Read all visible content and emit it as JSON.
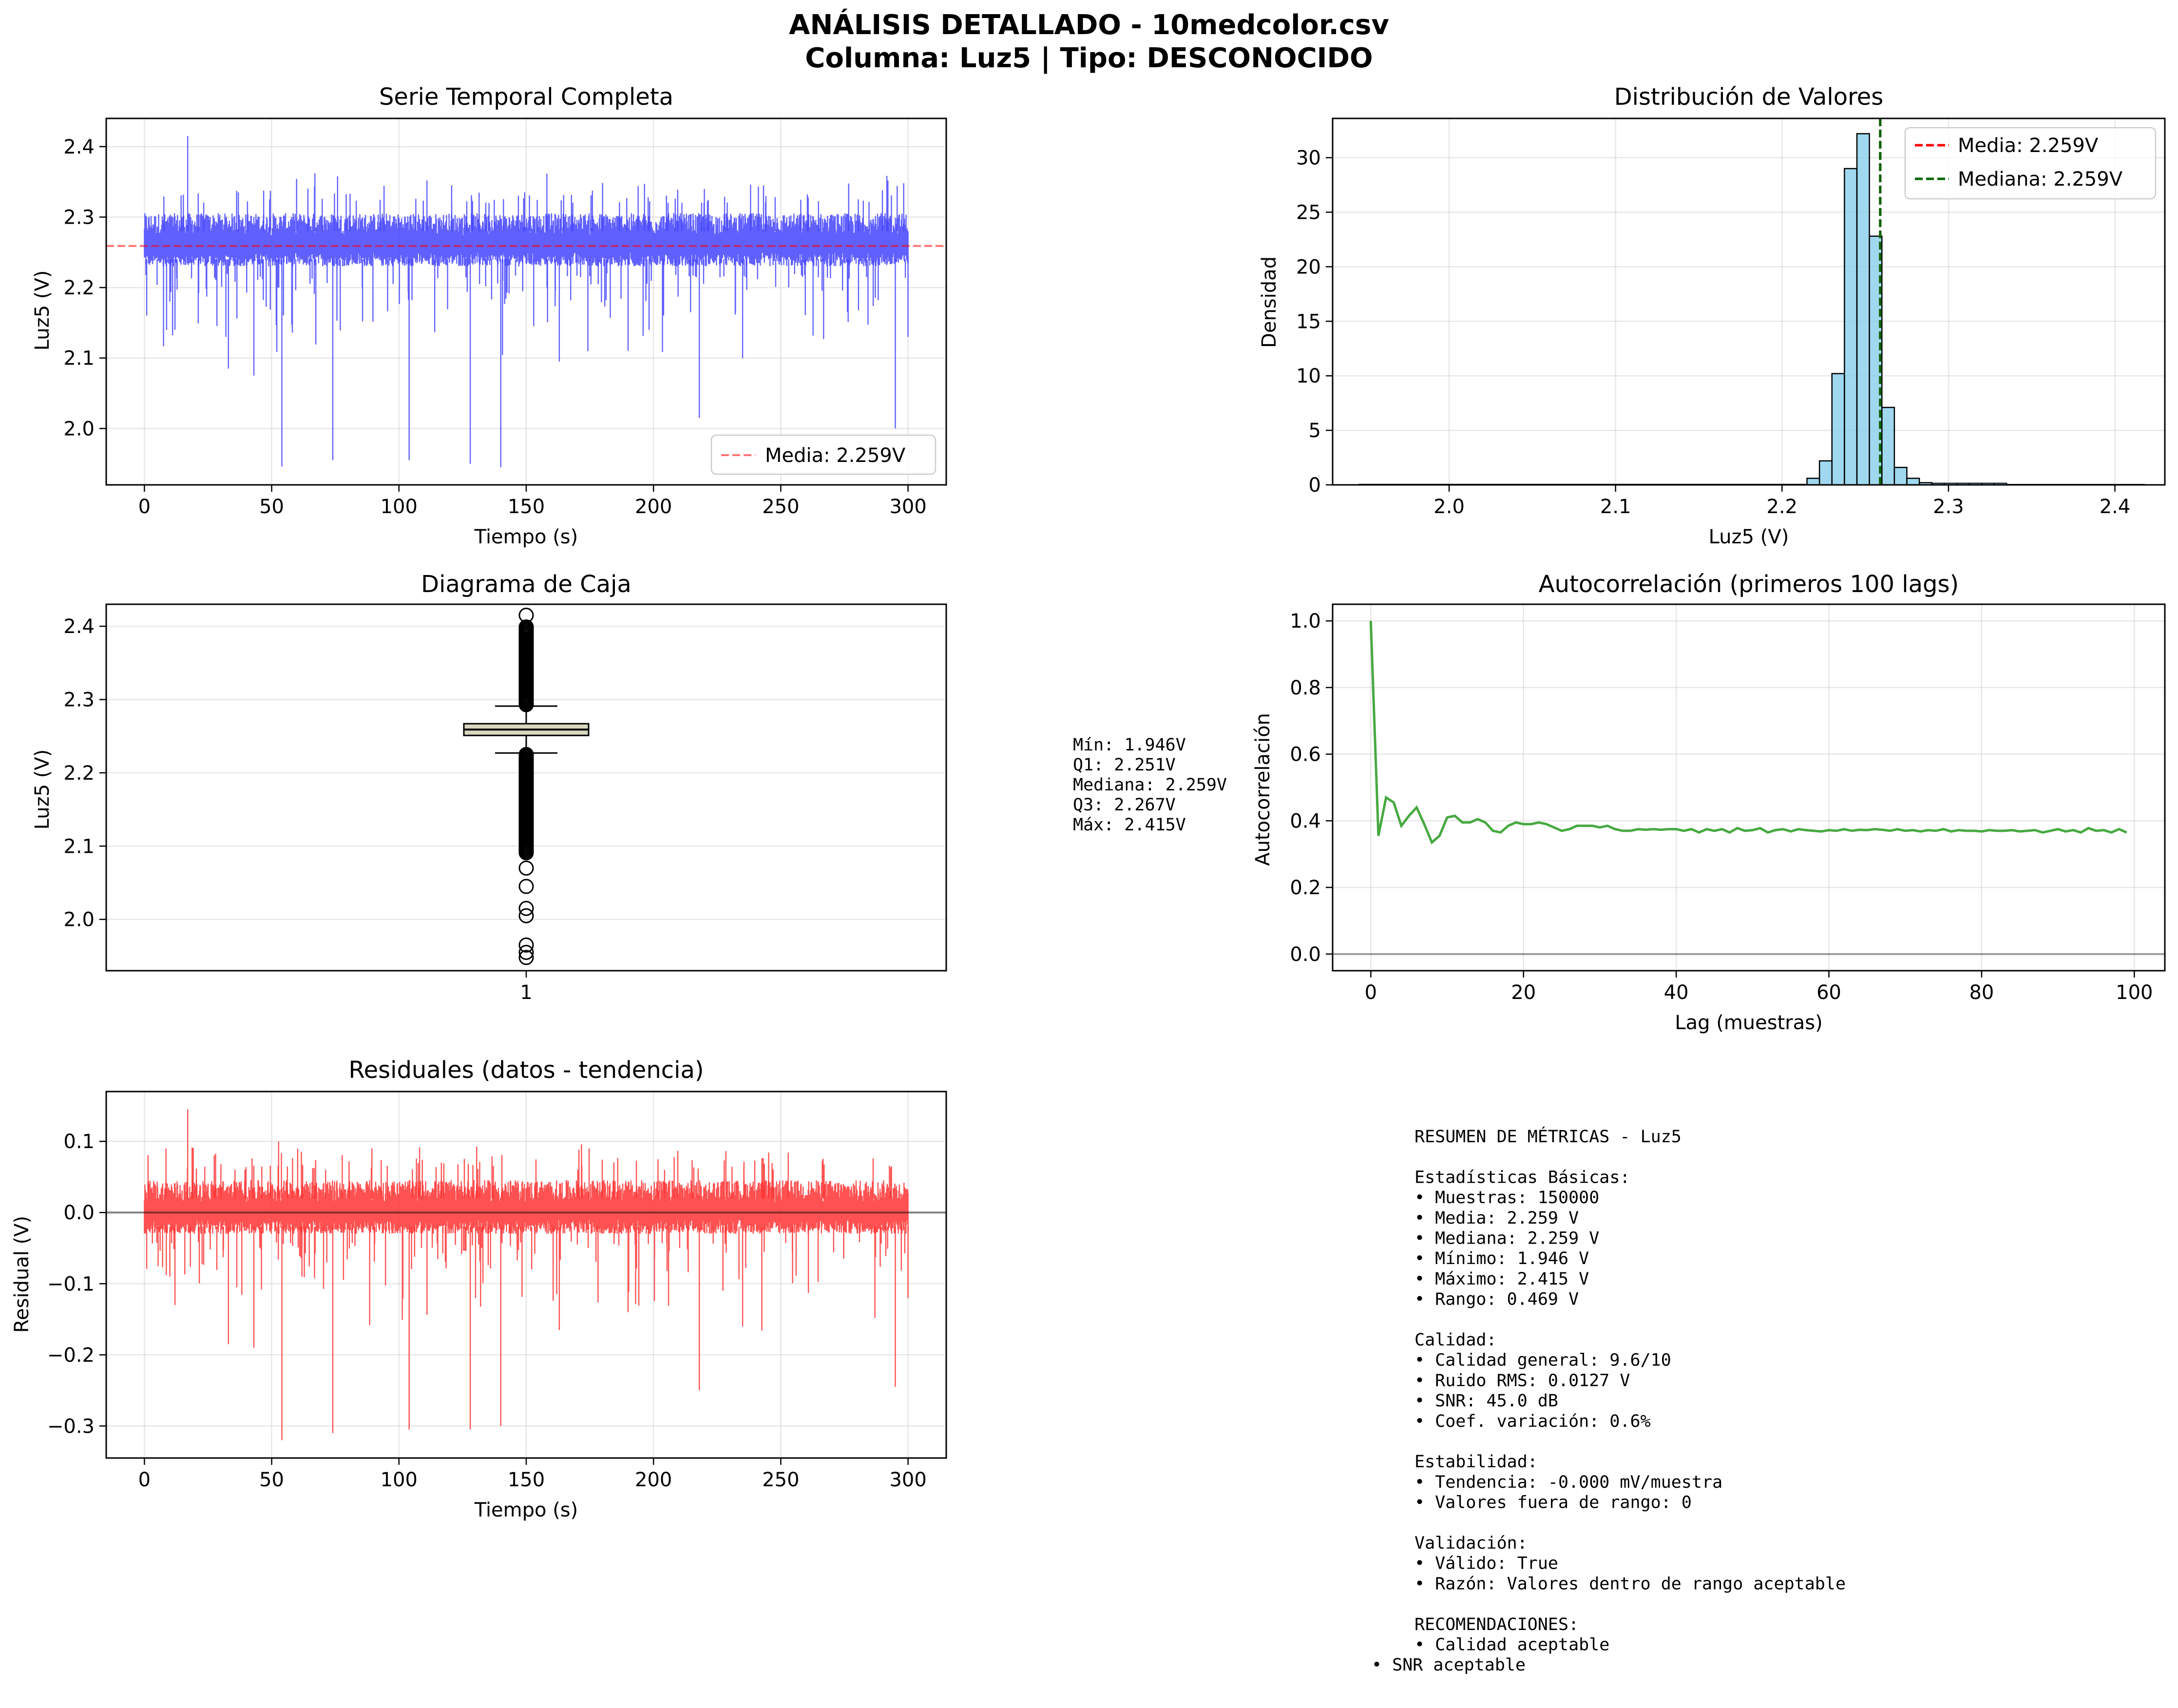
{
  "figure": {
    "suptitle_line1": "ANÁLISIS DETALLADO - 10medcolor.csv",
    "suptitle_line2": "Columna: Luz5 | Tipo: DESCONOCIDO"
  },
  "colors": {
    "series_blue": "#4444ff",
    "mean_line": "#ff0000",
    "median_line": "#006400",
    "hist_fill": "#87ceeb",
    "acf_green": "#33a02c",
    "residual_red": "#ff3333",
    "box_fill": "#d8d8c0"
  },
  "box_stats_text": [
    "Mín: 1.946V",
    "Q1: 2.251V",
    "Mediana: 2.259V",
    "Q3: 2.267V",
    "Máx: 2.415V"
  ],
  "summary_lines": [
    "RESUMEN DE MÉTRICAS - Luz5",
    "",
    "Estadísticas Básicas:",
    "• Muestras: 150000",
    "• Media: 2.259 V",
    "• Mediana: 2.259 V",
    "• Mínimo: 1.946 V",
    "• Máximo: 2.415 V",
    "• Rango: 0.469 V",
    "",
    "Calidad:",
    "• Calidad general: 9.6/10",
    "• Ruido RMS: 0.0127 V",
    "• SNR: 45.0 dB",
    "• Coef. variación: 0.6%",
    "",
    "Estabilidad:",
    "• Tendencia: -0.000 mV/muestra",
    "• Valores fuera de rango: 0",
    "",
    "Validación:",
    "• Válido: True",
    "• Razón: Valores dentro de rango aceptable",
    "",
    "RECOMENDACIONES:",
    "• Calidad aceptable"
  ],
  "summary_last_line": "• SNR aceptable",
  "chart_data": [
    {
      "type": "line",
      "title": "Serie Temporal Completa",
      "xlabel": "Tiempo (s)",
      "ylabel": "Luz5 (V)",
      "xlim": [
        -15,
        315
      ],
      "ylim": [
        1.92,
        2.44
      ],
      "xticks": [
        0,
        50,
        100,
        150,
        200,
        250,
        300
      ],
      "yticks": [
        2.0,
        2.1,
        2.2,
        2.3,
        2.4
      ],
      "ytick_labels": [
        "2.0",
        "2.1",
        "2.2",
        "2.3",
        "2.4"
      ],
      "grid": true,
      "legend_position": "lower-right",
      "series": [
        {
          "name": "",
          "x_range": [
            0,
            300
          ],
          "band": [
            2.24,
            2.28
          ],
          "noise_band": [
            2.22,
            2.32
          ],
          "spikes": [
            [
              17,
              2.415
            ],
            [
              54,
              1.946
            ],
            [
              74,
              1.955
            ],
            [
              104,
              1.955
            ],
            [
              128,
              1.95
            ],
            [
              140,
              1.945
            ],
            [
              218,
              2.015
            ],
            [
              295,
              2.0
            ],
            [
              33,
              2.085
            ],
            [
              43,
              2.075
            ],
            [
              190,
              2.11
            ],
            [
              235,
              2.1
            ],
            [
              163,
              2.095
            ],
            [
              300,
              2.13
            ],
            [
              10,
              2.18
            ],
            [
              12,
              2.14
            ]
          ]
        }
      ],
      "hlines": [
        {
          "name": "Media: 2.259V",
          "y": 2.259,
          "style": "dashed"
        }
      ]
    },
    {
      "type": "bar",
      "title": "Distribución de Valores",
      "xlabel": "Luz5 (V)",
      "ylabel": "Densidad",
      "xlim": [
        1.93,
        2.43
      ],
      "ylim": [
        0,
        33.6
      ],
      "xticks": [
        2.0,
        2.1,
        2.2,
        2.3,
        2.4
      ],
      "xtick_labels": [
        "2.0",
        "2.1",
        "2.2",
        "2.3",
        "2.4"
      ],
      "yticks": [
        0,
        5,
        10,
        15,
        20,
        25,
        30
      ],
      "grid": true,
      "legend_position": "upper-right",
      "bins": [
        {
          "x0": 2.215,
          "x1": 2.2225,
          "y": 0.6
        },
        {
          "x0": 2.2225,
          "x1": 2.23,
          "y": 2.2
        },
        {
          "x0": 2.23,
          "x1": 2.2375,
          "y": 10.2
        },
        {
          "x0": 2.2375,
          "x1": 2.245,
          "y": 29.0
        },
        {
          "x0": 2.245,
          "x1": 2.2525,
          "y": 32.2
        },
        {
          "x0": 2.2525,
          "x1": 2.26,
          "y": 22.8
        },
        {
          "x0": 2.26,
          "x1": 2.2675,
          "y": 7.1
        },
        {
          "x0": 2.2675,
          "x1": 2.275,
          "y": 1.6
        },
        {
          "x0": 2.275,
          "x1": 2.2825,
          "y": 0.6
        },
        {
          "x0": 2.2825,
          "x1": 2.29,
          "y": 0.2
        }
      ],
      "vlines": [
        {
          "name": "Media: 2.259V",
          "x": 2.259
        },
        {
          "name": "Mediana: 2.259V",
          "x": 2.259
        }
      ]
    },
    {
      "type": "box",
      "title": "Diagrama de Caja",
      "xlabel": "",
      "ylabel": "Luz5 (V)",
      "ylim": [
        1.93,
        2.43
      ],
      "yticks": [
        2.0,
        2.1,
        2.2,
        2.3,
        2.4
      ],
      "ytick_labels": [
        "2.0",
        "2.1",
        "2.2",
        "2.3",
        "2.4"
      ],
      "xtick_labels": [
        "1"
      ],
      "grid": true,
      "q1": 2.251,
      "median": 2.259,
      "q3": 2.267,
      "whisker_low": 2.227,
      "whisker_high": 2.291,
      "outliers_low_dense_to": 2.09,
      "outliers_high_dense_to": 2.4,
      "outliers_extra": [
        2.415,
        2.07,
        2.045,
        2.015,
        2.005,
        1.965,
        1.955,
        1.948
      ]
    },
    {
      "type": "line",
      "title": "Autocorrelación (primeros 100 lags)",
      "xlabel": "Lag (muestras)",
      "ylabel": "Autocorrelación",
      "xlim": [
        -5,
        104
      ],
      "ylim": [
        -0.05,
        1.05
      ],
      "xticks": [
        0,
        20,
        40,
        60,
        80,
        100
      ],
      "yticks": [
        0.0,
        0.2,
        0.4,
        0.6,
        0.8,
        1.0
      ],
      "ytick_labels": [
        "0.0",
        "0.2",
        "0.4",
        "0.6",
        "0.8",
        "1.0"
      ],
      "grid": true,
      "series": [
        {
          "name": "",
          "x": [
            0,
            1,
            2,
            3,
            4,
            5,
            6,
            7,
            8,
            9,
            10,
            11,
            12,
            13,
            14,
            15,
            16,
            17,
            18,
            19,
            20,
            21,
            22,
            23,
            24,
            25,
            26,
            27,
            28,
            29,
            30,
            31,
            32,
            33,
            34,
            35,
            36,
            37,
            38,
            39,
            40,
            41,
            42,
            43,
            44,
            45,
            46,
            47,
            48,
            49,
            50,
            51,
            52,
            53,
            54,
            55,
            56,
            57,
            58,
            59,
            60,
            61,
            62,
            63,
            64,
            65,
            66,
            67,
            68,
            69,
            70,
            71,
            72,
            73,
            74,
            75,
            76,
            77,
            78,
            79,
            80,
            81,
            82,
            83,
            84,
            85,
            86,
            87,
            88,
            89,
            90,
            91,
            92,
            93,
            94,
            95,
            96,
            97,
            98,
            99
          ],
          "values": [
            1.0,
            0.355,
            0.47,
            0.455,
            0.385,
            0.415,
            0.44,
            0.39,
            0.335,
            0.355,
            0.41,
            0.415,
            0.395,
            0.395,
            0.405,
            0.395,
            0.37,
            0.365,
            0.385,
            0.395,
            0.39,
            0.39,
            0.395,
            0.39,
            0.38,
            0.37,
            0.375,
            0.385,
            0.385,
            0.385,
            0.38,
            0.385,
            0.375,
            0.37,
            0.37,
            0.375,
            0.373,
            0.375,
            0.373,
            0.375,
            0.375,
            0.37,
            0.375,
            0.365,
            0.375,
            0.37,
            0.375,
            0.365,
            0.378,
            0.37,
            0.372,
            0.378,
            0.365,
            0.372,
            0.375,
            0.368,
            0.375,
            0.372,
            0.37,
            0.368,
            0.372,
            0.37,
            0.375,
            0.37,
            0.373,
            0.372,
            0.375,
            0.373,
            0.37,
            0.375,
            0.37,
            0.372,
            0.368,
            0.372,
            0.37,
            0.375,
            0.368,
            0.372,
            0.37,
            0.37,
            0.368,
            0.372,
            0.37,
            0.37,
            0.372,
            0.368,
            0.37,
            0.372,
            0.365,
            0.37,
            0.375,
            0.368,
            0.372,
            0.365,
            0.378,
            0.37,
            0.372,
            0.365,
            0.375,
            0.365
          ]
        }
      ],
      "hlines": [
        {
          "y": 0
        }
      ]
    },
    {
      "type": "line",
      "title": "Residuales (datos - tendencia)",
      "xlabel": "Tiempo (s)",
      "ylabel": "Residual (V)",
      "xlim": [
        -15,
        315
      ],
      "ylim": [
        -0.345,
        0.17
      ],
      "xticks": [
        0,
        50,
        100,
        150,
        200,
        250,
        300
      ],
      "yticks": [
        -0.3,
        -0.2,
        -0.1,
        0.0,
        0.1
      ],
      "ytick_labels": [
        "−0.3",
        "−0.2",
        "−0.1",
        "0.0",
        "0.1"
      ],
      "grid": true,
      "series": [
        {
          "name": "",
          "x_range": [
            0,
            300
          ],
          "band": [
            -0.02,
            0.02
          ],
          "noise_band": [
            -0.04,
            0.06
          ],
          "spikes": [
            [
              17,
              0.145
            ],
            [
              54,
              -0.32
            ],
            [
              74,
              -0.31
            ],
            [
              104,
              -0.305
            ],
            [
              128,
              -0.305
            ],
            [
              140,
              -0.3
            ],
            [
              218,
              -0.25
            ],
            [
              295,
              -0.245
            ],
            [
              33,
              -0.185
            ],
            [
              43,
              -0.19
            ],
            [
              190,
              -0.14
            ],
            [
              235,
              -0.16
            ],
            [
              163,
              -0.165
            ],
            [
              300,
              -0.12
            ],
            [
              10,
              -0.09
            ],
            [
              12,
              -0.13
            ]
          ]
        }
      ],
      "hlines": [
        {
          "y": 0
        }
      ]
    }
  ]
}
